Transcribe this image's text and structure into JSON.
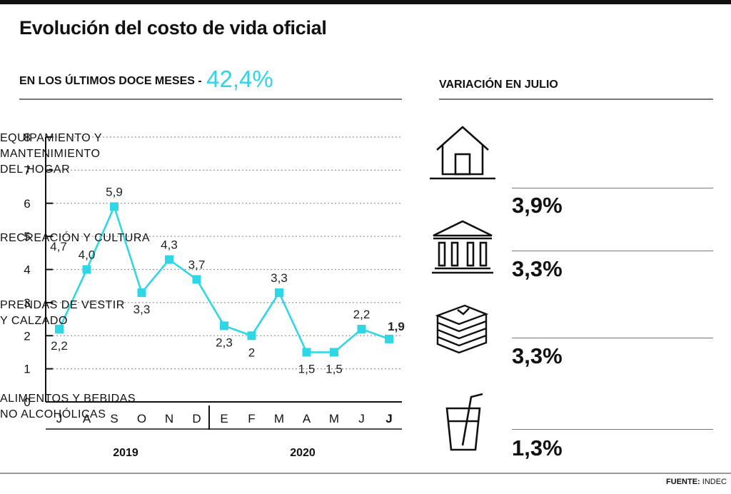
{
  "title": "Evolución del costo de vida oficial",
  "subheading": {
    "label": "EN LOS ÚLTIMOS DOCE MESES -",
    "value": "42,4%"
  },
  "chart_data": {
    "type": "line",
    "categories": [
      "J",
      "A",
      "S",
      "O",
      "N",
      "D",
      "E",
      "F",
      "M",
      "A",
      "M",
      "J",
      "J"
    ],
    "values": [
      2.2,
      4.0,
      5.9,
      3.3,
      4.3,
      3.7,
      2.3,
      2.0,
      3.3,
      1.5,
      1.5,
      2.2,
      1.9
    ],
    "point_labels": [
      "2,2",
      "4,0",
      "5,9",
      "3,3",
      "4,3",
      "3,7",
      "2,3",
      "2",
      "3,3",
      "1,5",
      "1,5",
      "2,2",
      "1,9"
    ],
    "extra_annotation": "4,7",
    "yticks": [
      "0",
      "1",
      "2",
      "3",
      "4",
      "5",
      "6",
      "7",
      "8"
    ],
    "ylim": [
      0,
      8
    ],
    "year_groups": [
      "2019",
      "2020"
    ],
    "grid": "horizontal dotted",
    "color": "#2fd6e6"
  },
  "variation": {
    "title": "VARIACIÓN EN JULIO",
    "items": [
      {
        "icon": "house-icon",
        "label_lines": [
          "EQUIPAMIENTO Y",
          "MANTENIMIENTO",
          "DEL HOGAR"
        ],
        "value": "3,9%"
      },
      {
        "icon": "museum-icon",
        "label_lines": [
          "RECREACIÓN Y CULTURA"
        ],
        "value": "3,3%"
      },
      {
        "icon": "folded-clothes-icon",
        "label_lines": [
          "PRENDAS DE VESTIR",
          "Y CALZADO"
        ],
        "value": "3,3%"
      },
      {
        "icon": "glass-straw-icon",
        "label_lines": [
          "ALIMENTOS Y BEBIDAS",
          "NO ALCOHÓLICAS"
        ],
        "value": "1,3%"
      }
    ]
  },
  "source": {
    "label": "FUENTE:",
    "value": "INDEC"
  }
}
